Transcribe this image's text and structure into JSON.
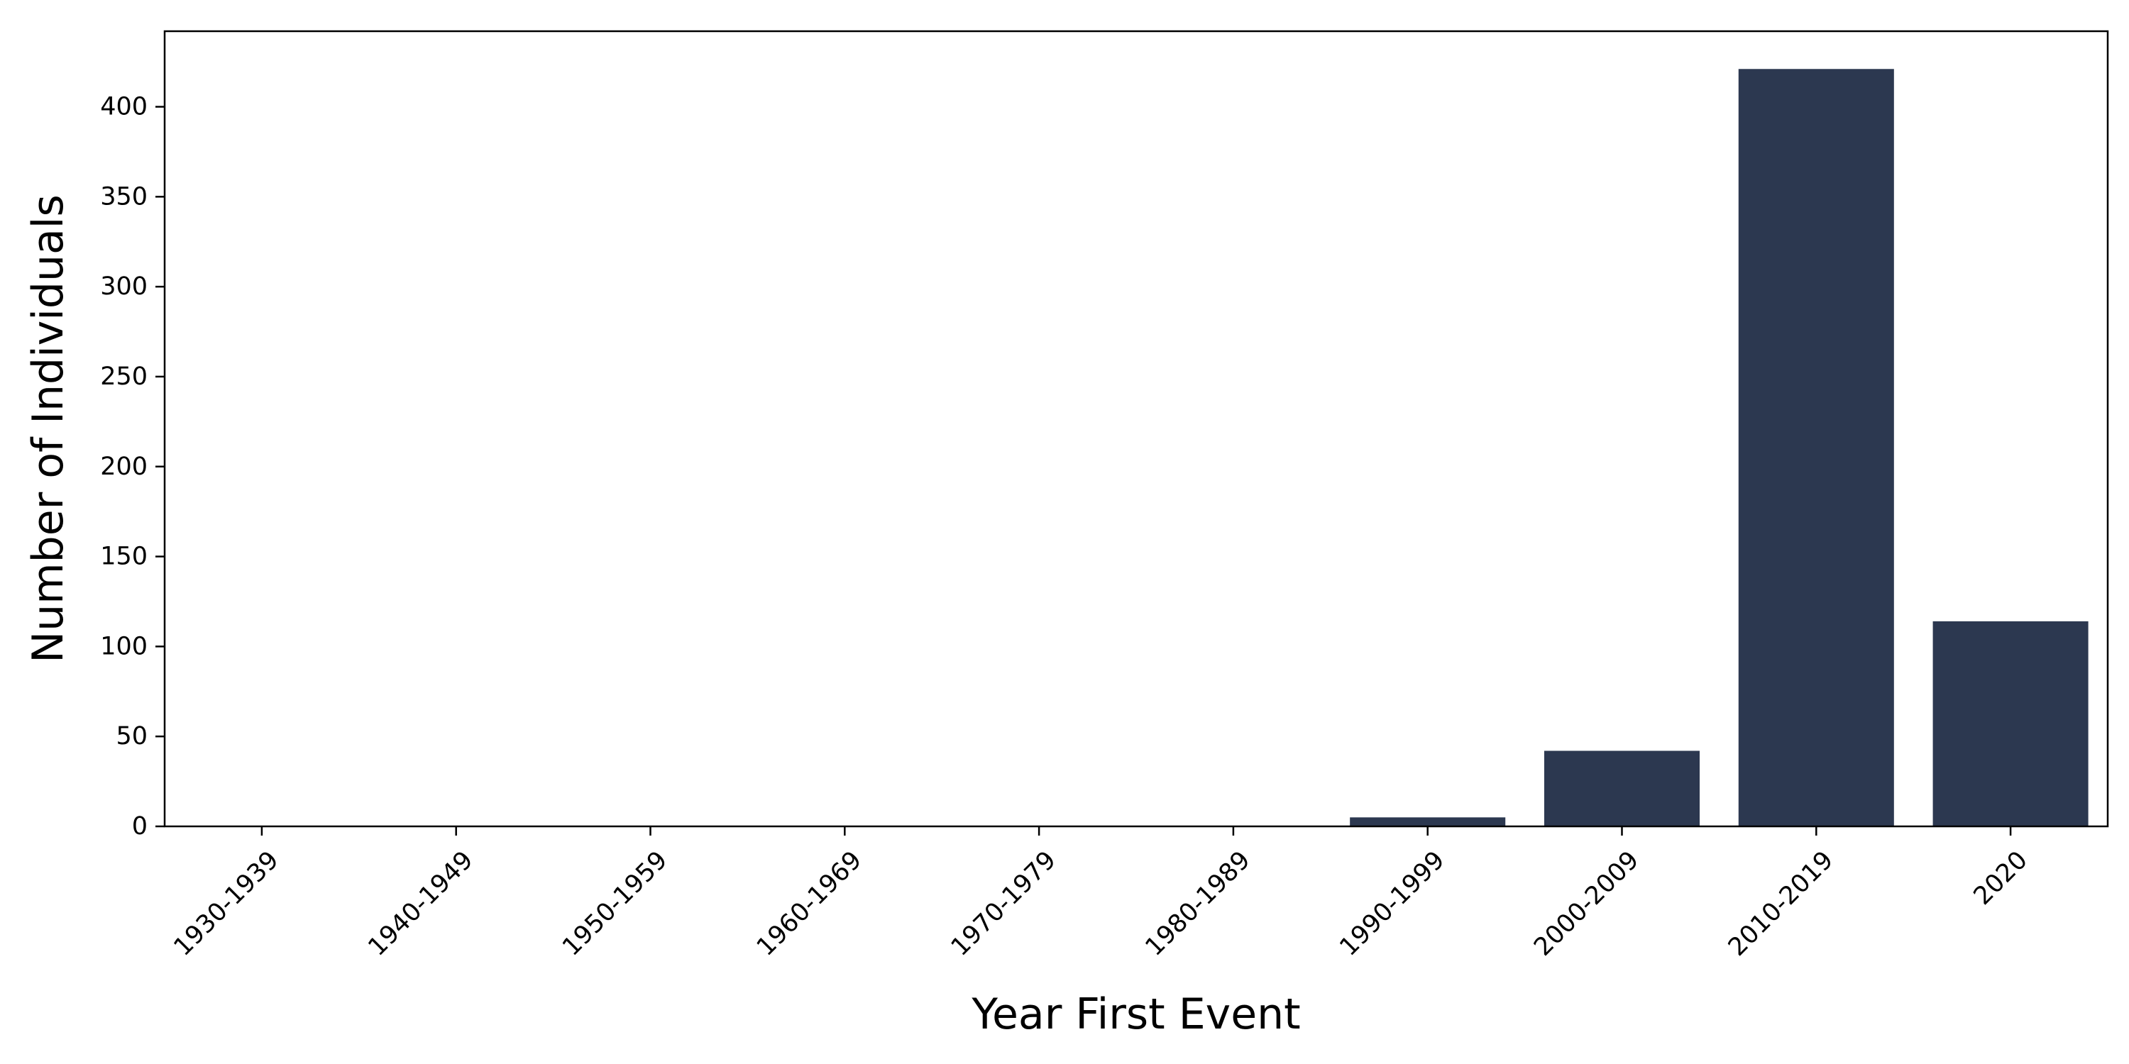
{
  "chart_data": {
    "type": "bar",
    "title": "",
    "xlabel": "Year First Event",
    "ylabel": "Number of Individuals",
    "categories": [
      "1930-1939",
      "1940-1949",
      "1950-1959",
      "1960-1969",
      "1970-1979",
      "1980-1989",
      "1990-1999",
      "2000-2009",
      "2010-2019",
      "2020"
    ],
    "values": [
      0,
      0,
      0,
      0,
      0,
      0,
      5,
      42,
      421,
      114
    ],
    "ylim": [
      0,
      442
    ],
    "yticks": [
      "0",
      "50",
      "100",
      "150",
      "200",
      "250",
      "300",
      "350",
      "400"
    ],
    "grid": false,
    "legend": "none",
    "bar_color": "#2c3850"
  }
}
